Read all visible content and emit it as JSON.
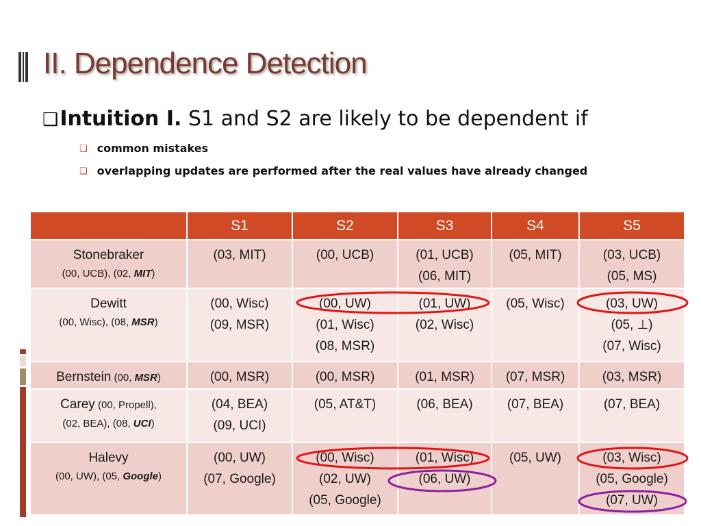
{
  "title": "II. Dependence Detection",
  "bullet": {
    "lead": "Intuition I.",
    "text": " S1 and S2 are likely to be dependent if"
  },
  "sub_bullets": [
    "common mistakes",
    "overlapping updates are performed after the real values have already changed"
  ],
  "table": {
    "headers": [
      "",
      "S1",
      "S2",
      "S3",
      "S4",
      "S5"
    ],
    "rows": [
      {
        "name": "Stonebraker",
        "truth_pre": "(00, UCB), (02, ",
        "truth_em": "MIT",
        "truth_post": ")",
        "s1": [
          "(03, MIT)"
        ],
        "s2": [
          "(00, UCB)"
        ],
        "s3": [
          "(01, UCB)",
          "(06, MIT)"
        ],
        "s4": [
          "(05, MIT)"
        ],
        "s5": [
          "(03, UCB)",
          "(05, MS)"
        ]
      },
      {
        "name": "Dewitt",
        "truth_pre": "(00, Wisc), (08, ",
        "truth_em": "MSR",
        "truth_post": ")",
        "s1": [
          "(00, Wisc)",
          "(09, MSR)"
        ],
        "s2": [
          "(00, UW)",
          "(01, Wisc)",
          "(08, MSR)"
        ],
        "s3": [
          "(01, UW)",
          "(02, Wisc)"
        ],
        "s4": [
          "(05, Wisc)"
        ],
        "s5": [
          "(03, UW)",
          "(05, ⊥)",
          "(07, Wisc)"
        ]
      },
      {
        "name": "Bernstein",
        "truth_pre": "(00, ",
        "truth_em": "MSR",
        "truth_post": ")",
        "s1": [
          "(00, MSR)"
        ],
        "s2": [
          "(00, MSR)"
        ],
        "s3": [
          "(01, MSR)"
        ],
        "s4": [
          "(07, MSR)"
        ],
        "s5": [
          "(03, MSR)"
        ]
      },
      {
        "name": "Carey",
        "truth_pre": "(00, Propell),",
        "truth_pre2": "(02, BEA), (08, ",
        "truth_em": "UCI",
        "truth_post": ")",
        "s1": [
          "(04, BEA)",
          "(09, UCI)"
        ],
        "s2": [
          "(05, AT&T)"
        ],
        "s3": [
          "(06, BEA)"
        ],
        "s4": [
          "(07, BEA)"
        ],
        "s5": [
          "(07, BEA)"
        ]
      },
      {
        "name": "Halevy",
        "truth_pre": "(00, UW), (05, ",
        "truth_em": "Google",
        "truth_post": ")",
        "s1": [
          "(00, UW)",
          "(07, Google)"
        ],
        "s2": [
          "(00, Wisc)",
          "(02, UW)",
          "(05, Google)"
        ],
        "s3": [
          "(01, Wisc)",
          "(06, UW)"
        ],
        "s4": [
          "(05, UW)"
        ],
        "s5": [
          "(03, Wisc)",
          "(05, Google)",
          "(07, UW)"
        ]
      }
    ]
  },
  "colors": {
    "header_bg": "#d04a25",
    "row_dark": "#efcfcb",
    "row_light": "#f7e8e6",
    "title": "#7a3a2e",
    "circle_red": "#e01515",
    "circle_purple": "#8e1fa0"
  }
}
